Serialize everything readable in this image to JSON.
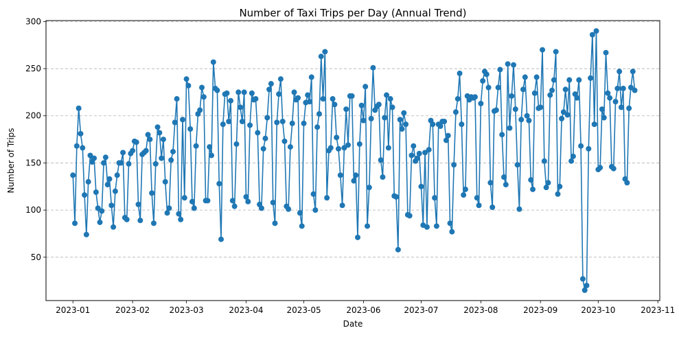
{
  "chart_data": {
    "type": "line",
    "title": "Number of Taxi Trips per Day (Annual Trend)",
    "xlabel": "Date",
    "ylabel": "Number of Trips",
    "x_start": "2023-01-01",
    "x_ticks": [
      "2023-01",
      "2023-02",
      "2023-03",
      "2023-04",
      "2023-05",
      "2023-06",
      "2023-07",
      "2023-08",
      "2023-09",
      "2023-10",
      "2023-11"
    ],
    "y_ticks": [
      50,
      100,
      150,
      200,
      250,
      300
    ],
    "xlim": [
      "2022-12-18",
      "2023-11-02"
    ],
    "ylim": [
      4,
      301
    ],
    "grid": "y-dashed",
    "marker": "circle",
    "color": "#1f77b4",
    "series": [
      {
        "values": [
          137,
          86,
          168,
          208,
          181,
          166,
          116,
          74,
          130,
          158,
          151,
          155,
          119,
          102,
          87,
          99,
          150,
          156,
          127,
          133,
          105,
          82,
          120,
          137,
          150,
          150,
          161,
          92,
          90,
          149,
          160,
          163,
          173,
          172,
          106,
          89,
          159,
          161,
          163,
          180,
          175,
          118,
          86,
          149,
          188,
          182,
          155,
          175,
          130,
          97,
          102,
          153,
          162,
          193,
          218,
          96,
          90,
          196,
          113,
          239,
          232,
          186,
          109,
          102,
          168,
          202,
          206,
          230,
          220,
          110,
          110,
          167,
          158,
          257,
          229,
          227,
          128,
          69,
          191,
          223,
          224,
          194,
          216,
          110,
          104,
          170,
          225,
          209,
          194,
          225,
          114,
          109,
          190,
          224,
          217,
          218,
          182,
          106,
          102,
          165,
          176,
          198,
          228,
          234,
          108,
          86,
          193,
          223,
          239,
          194,
          173,
          104,
          101,
          167,
          192,
          225,
          217,
          219,
          97,
          83,
          192,
          214,
          222,
          215,
          241,
          117,
          100,
          188,
          202,
          263,
          218,
          268,
          113,
          163,
          166,
          218,
          212,
          177,
          165,
          137,
          105,
          166,
          207,
          169,
          221,
          221,
          131,
          137,
          71,
          170,
          211,
          195,
          231,
          83,
          124,
          197,
          251,
          206,
          210,
          212,
          153,
          135,
          198,
          222,
          166,
          218,
          209,
          115,
          114,
          58,
          196,
          186,
          203,
          191,
          95,
          94,
          158,
          168,
          152,
          155,
          160,
          125,
          84,
          161,
          82,
          164,
          195,
          191,
          113,
          83,
          191,
          189,
          194,
          194,
          174,
          179,
          86,
          77,
          148,
          204,
          218,
          245,
          191,
          116,
          122,
          221,
          217,
          220,
          219,
          220,
          113,
          105,
          213,
          237,
          247,
          244,
          230,
          129,
          103,
          205,
          206,
          230,
          249,
          180,
          135,
          127,
          255,
          187,
          221,
          254,
          207,
          148,
          101,
          196,
          228,
          241,
          200,
          195,
          132,
          122,
          224,
          241,
          208,
          209,
          270,
          152,
          124,
          129,
          222,
          227,
          238,
          268,
          117,
          125,
          197,
          204,
          228,
          201,
          238,
          152,
          157,
          223,
          219,
          238,
          168,
          27,
          15,
          20,
          165,
          240,
          286,
          191,
          290,
          143,
          145,
          207,
          198,
          267,
          224,
          219,
          146,
          144,
          215,
          229,
          247,
          209,
          229,
          133,
          129,
          208,
          230,
          247,
          227
        ]
      }
    ]
  }
}
